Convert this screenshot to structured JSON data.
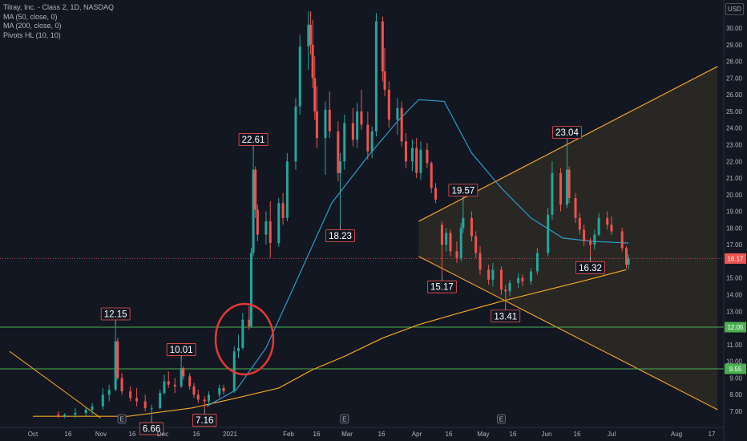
{
  "legend": {
    "title": "Tilray, Inc. - Class 2, 1D, NASDAQ",
    "ma50": "MA (50, close, 0)",
    "ma200": "MA (200, close, 0)",
    "pivots": "Pivots HL (10, 10)"
  },
  "currency": "USD",
  "colors": {
    "background": "#131722",
    "up": "#26a69a",
    "down": "#ef5350",
    "ma50": "#2e9cc9",
    "ma200": "#f5a623",
    "wedge": "#f0a030",
    "hline": "#4caf50",
    "annotation": "#e53935"
  },
  "chart_data": {
    "type": "candlestick",
    "title": "Tilray, Inc. - Class 2, 1D, NASDAQ",
    "ylim": [
      6.5,
      31.0
    ],
    "y_ticks": [
      "30.00",
      "29.00",
      "28.00",
      "27.00",
      "26.00",
      "25.00",
      "24.00",
      "23.00",
      "22.00",
      "21.00",
      "20.00",
      "19.00",
      "18.00",
      "17.00",
      "16.00",
      "15.00",
      "14.00",
      "13.00",
      "12.00",
      "11.00",
      "10.00",
      "9.00",
      "8.00",
      "7.00"
    ],
    "x_ticks": [
      "Oct",
      "16",
      "Nov",
      "16",
      "Dec",
      "16",
      "2021",
      "Feb",
      "16",
      "Mar",
      "16",
      "Apr",
      "16",
      "May",
      "16",
      "Jun",
      "16",
      "Jul",
      "Aug",
      "17"
    ],
    "price_labels": [
      {
        "text": "16.17",
        "value": 16.17,
        "color": "#ef5350"
      },
      {
        "text": "12.05",
        "value": 12.05,
        "color": "#4caf50"
      },
      {
        "text": "9.55",
        "value": 9.55,
        "color": "#4caf50"
      }
    ],
    "horizontal_lines": [
      {
        "value": 12.05,
        "style": "solid"
      },
      {
        "value": 9.55,
        "style": "solid"
      },
      {
        "value": 16.17,
        "style": "dotted"
      }
    ],
    "pivots": [
      {
        "text": "12.15",
        "type": "high",
        "date": "2020-11-09",
        "value": 12.15
      },
      {
        "text": "6.66",
        "type": "low",
        "date": "2020-11-26",
        "value": 6.66
      },
      {
        "text": "10.01",
        "type": "high",
        "date": "2020-12-10",
        "value": 10.01
      },
      {
        "text": "7.16",
        "type": "low",
        "date": "2020-12-21",
        "value": 7.16
      },
      {
        "text": "22.61",
        "type": "high",
        "date": "2021-01-13",
        "value": 22.61
      },
      {
        "text": "18.23",
        "type": "low",
        "date": "2021-02-23",
        "value": 18.23
      },
      {
        "text": "19.57",
        "type": "high",
        "date": "2021-04-22",
        "value": 19.57
      },
      {
        "text": "15.17",
        "type": "low",
        "date": "2021-04-12",
        "value": 15.17
      },
      {
        "text": "13.41",
        "type": "low",
        "date": "2021-05-12",
        "value": 13.41
      },
      {
        "text": "23.04",
        "type": "high",
        "date": "2021-06-10",
        "value": 23.04
      },
      {
        "text": "16.32",
        "type": "low",
        "date": "2021-06-21",
        "value": 16.32
      }
    ],
    "wedge": {
      "upper": [
        {
          "date": "2021-04-01",
          "value": 18.4
        },
        {
          "date": "2021-08-20",
          "value": 27.7
        }
      ],
      "lower": [
        {
          "date": "2021-04-01",
          "value": 16.3
        },
        {
          "date": "2021-08-20",
          "value": 7.1
        }
      ]
    },
    "ma50": [
      {
        "date": "2020-12-22",
        "value": 7.3
      },
      {
        "date": "2021-01-05",
        "value": 8.3
      },
      {
        "date": "2021-01-19",
        "value": 10.8
      },
      {
        "date": "2021-02-03",
        "value": 15.0
      },
      {
        "date": "2021-02-19",
        "value": 19.5
      },
      {
        "date": "2021-03-08",
        "value": 22.3
      },
      {
        "date": "2021-03-22",
        "value": 24.4
      },
      {
        "date": "2021-04-01",
        "value": 25.7
      },
      {
        "date": "2021-04-13",
        "value": 25.6
      },
      {
        "date": "2021-04-26",
        "value": 22.5
      },
      {
        "date": "2021-05-10",
        "value": 20.4
      },
      {
        "date": "2021-05-24",
        "value": 18.6
      },
      {
        "date": "2021-06-08",
        "value": 17.4
      },
      {
        "date": "2021-06-22",
        "value": 17.2
      },
      {
        "date": "2021-07-09",
        "value": 17.1
      }
    ],
    "ma200": [
      {
        "date": "2020-10-01",
        "value": 6.7
      },
      {
        "date": "2020-11-15",
        "value": 6.7
      },
      {
        "date": "2020-12-15",
        "value": 7.2
      },
      {
        "date": "2021-01-05",
        "value": 7.8
      },
      {
        "date": "2021-01-25",
        "value": 8.4
      },
      {
        "date": "2021-02-10",
        "value": 9.5
      },
      {
        "date": "2021-02-25",
        "value": 10.3
      },
      {
        "date": "2021-03-15",
        "value": 11.4
      },
      {
        "date": "2021-04-01",
        "value": 12.2
      },
      {
        "date": "2021-04-20",
        "value": 12.9
      },
      {
        "date": "2021-05-10",
        "value": 13.6
      },
      {
        "date": "2021-06-01",
        "value": 14.3
      },
      {
        "date": "2021-06-20",
        "value": 14.9
      },
      {
        "date": "2021-07-08",
        "value": 15.5
      }
    ],
    "support_decline": [
      {
        "date": "2020-09-20",
        "value": 10.6
      },
      {
        "date": "2020-11-02",
        "value": 6.6
      }
    ],
    "candles": [
      {
        "d": "2020-10-13",
        "o": 6.8,
        "h": 7.0,
        "l": 6.6,
        "c": 6.7
      },
      {
        "d": "2020-10-16",
        "o": 6.7,
        "h": 6.9,
        "l": 6.6,
        "c": 6.8
      },
      {
        "d": "2020-10-21",
        "o": 6.8,
        "h": 7.2,
        "l": 6.6,
        "c": 6.9
      },
      {
        "d": "2020-10-26",
        "o": 6.9,
        "h": 7.3,
        "l": 6.7,
        "c": 7.1
      },
      {
        "d": "2020-10-29",
        "o": 7.1,
        "h": 7.5,
        "l": 6.8,
        "c": 7.3
      },
      {
        "d": "2020-11-03",
        "o": 7.3,
        "h": 8.4,
        "l": 7.1,
        "c": 8.0
      },
      {
        "d": "2020-11-06",
        "o": 8.0,
        "h": 8.6,
        "l": 7.6,
        "c": 8.3
      },
      {
        "d": "2020-11-09",
        "o": 8.3,
        "h": 12.15,
        "l": 8.2,
        "c": 11.2
      },
      {
        "d": "2020-11-10",
        "o": 11.2,
        "h": 11.4,
        "l": 8.9,
        "c": 9.0
      },
      {
        "d": "2020-11-12",
        "o": 9.0,
        "h": 9.3,
        "l": 8.0,
        "c": 8.2
      },
      {
        "d": "2020-11-16",
        "o": 8.2,
        "h": 8.5,
        "l": 7.6,
        "c": 7.8
      },
      {
        "d": "2020-11-19",
        "o": 7.8,
        "h": 8.4,
        "l": 7.3,
        "c": 7.6
      },
      {
        "d": "2020-11-23",
        "o": 7.6,
        "h": 8.0,
        "l": 7.0,
        "c": 7.2
      },
      {
        "d": "2020-11-26",
        "o": 7.2,
        "h": 7.4,
        "l": 6.66,
        "c": 7.2
      },
      {
        "d": "2020-11-30",
        "o": 7.2,
        "h": 8.3,
        "l": 7.1,
        "c": 8.1
      },
      {
        "d": "2020-12-02",
        "o": 8.1,
        "h": 9.2,
        "l": 8.0,
        "c": 8.8
      },
      {
        "d": "2020-12-04",
        "o": 8.8,
        "h": 9.4,
        "l": 8.4,
        "c": 8.6
      },
      {
        "d": "2020-12-07",
        "o": 8.6,
        "h": 9.0,
        "l": 8.1,
        "c": 8.5
      },
      {
        "d": "2020-12-10",
        "o": 8.5,
        "h": 10.01,
        "l": 8.4,
        "c": 9.6
      },
      {
        "d": "2020-12-11",
        "o": 9.6,
        "h": 9.7,
        "l": 8.9,
        "c": 9.1
      },
      {
        "d": "2020-12-14",
        "o": 9.1,
        "h": 9.3,
        "l": 8.3,
        "c": 8.5
      },
      {
        "d": "2020-12-16",
        "o": 8.5,
        "h": 8.7,
        "l": 7.8,
        "c": 8.0
      },
      {
        "d": "2020-12-18",
        "o": 8.0,
        "h": 8.3,
        "l": 7.5,
        "c": 7.7
      },
      {
        "d": "2020-12-21",
        "o": 7.7,
        "h": 7.9,
        "l": 7.16,
        "c": 7.6
      },
      {
        "d": "2020-12-23",
        "o": 7.6,
        "h": 8.2,
        "l": 7.4,
        "c": 8.0
      },
      {
        "d": "2020-12-28",
        "o": 8.0,
        "h": 8.6,
        "l": 7.8,
        "c": 8.4
      },
      {
        "d": "2020-12-30",
        "o": 8.4,
        "h": 8.6,
        "l": 8.0,
        "c": 8.2
      },
      {
        "d": "2021-01-04",
        "o": 8.2,
        "h": 10.9,
        "l": 8.1,
        "c": 10.6
      },
      {
        "d": "2021-01-06",
        "o": 10.6,
        "h": 11.6,
        "l": 10.2,
        "c": 10.8
      },
      {
        "d": "2021-01-08",
        "o": 10.8,
        "h": 12.9,
        "l": 10.7,
        "c": 12.5
      },
      {
        "d": "2021-01-11",
        "o": 12.5,
        "h": 13.3,
        "l": 11.9,
        "c": 12.1
      },
      {
        "d": "2021-01-12",
        "o": 12.1,
        "h": 16.8,
        "l": 12.0,
        "c": 16.5
      },
      {
        "d": "2021-01-13",
        "o": 16.5,
        "h": 22.61,
        "l": 16.3,
        "c": 21.5
      },
      {
        "d": "2021-01-14",
        "o": 21.5,
        "h": 21.7,
        "l": 18.6,
        "c": 19.1
      },
      {
        "d": "2021-01-15",
        "o": 19.1,
        "h": 19.4,
        "l": 17.2,
        "c": 17.6
      },
      {
        "d": "2021-01-19",
        "o": 17.6,
        "h": 19.0,
        "l": 17.0,
        "c": 18.4
      },
      {
        "d": "2021-01-21",
        "o": 18.4,
        "h": 19.6,
        "l": 16.2,
        "c": 17.1
      },
      {
        "d": "2021-01-25",
        "o": 17.1,
        "h": 19.8,
        "l": 16.9,
        "c": 19.5
      },
      {
        "d": "2021-01-27",
        "o": 19.5,
        "h": 20.1,
        "l": 18.2,
        "c": 18.6
      },
      {
        "d": "2021-01-29",
        "o": 18.6,
        "h": 22.5,
        "l": 18.4,
        "c": 22.0
      },
      {
        "d": "2021-02-02",
        "o": 22.0,
        "h": 25.8,
        "l": 21.5,
        "c": 25.3
      },
      {
        "d": "2021-02-04",
        "o": 25.3,
        "h": 29.6,
        "l": 24.8,
        "c": 28.9
      },
      {
        "d": "2021-02-08",
        "o": 28.9,
        "h": 31.0,
        "l": 27.5,
        "c": 30.2
      },
      {
        "d": "2021-02-09",
        "o": 30.2,
        "h": 31.0,
        "l": 28.4,
        "c": 29.0
      },
      {
        "d": "2021-02-10",
        "o": 29.0,
        "h": 30.5,
        "l": 26.4,
        "c": 27.0
      },
      {
        "d": "2021-02-11",
        "o": 27.0,
        "h": 28.3,
        "l": 24.5,
        "c": 25.0
      },
      {
        "d": "2021-02-12",
        "o": 25.0,
        "h": 26.5,
        "l": 22.8,
        "c": 23.4
      },
      {
        "d": "2021-02-16",
        "o": 23.4,
        "h": 25.6,
        "l": 21.2,
        "c": 25.1
      },
      {
        "d": "2021-02-18",
        "o": 25.1,
        "h": 26.2,
        "l": 23.4,
        "c": 23.8
      },
      {
        "d": "2021-02-22",
        "o": 23.8,
        "h": 24.4,
        "l": 20.8,
        "c": 21.3
      },
      {
        "d": "2021-02-23",
        "o": 21.3,
        "h": 22.5,
        "l": 18.23,
        "c": 22.0
      },
      {
        "d": "2021-02-25",
        "o": 22.0,
        "h": 24.8,
        "l": 21.5,
        "c": 24.3
      },
      {
        "d": "2021-03-01",
        "o": 24.3,
        "h": 25.2,
        "l": 22.9,
        "c": 23.3
      },
      {
        "d": "2021-03-03",
        "o": 23.3,
        "h": 25.5,
        "l": 22.8,
        "c": 25.0
      },
      {
        "d": "2021-03-05",
        "o": 25.0,
        "h": 26.3,
        "l": 23.9,
        "c": 24.2
      },
      {
        "d": "2021-03-08",
        "o": 24.2,
        "h": 25.0,
        "l": 22.1,
        "c": 22.6
      },
      {
        "d": "2021-03-10",
        "o": 22.6,
        "h": 24.1,
        "l": 22.2,
        "c": 23.8
      },
      {
        "d": "2021-03-12",
        "o": 23.8,
        "h": 30.9,
        "l": 23.5,
        "c": 30.4
      },
      {
        "d": "2021-03-15",
        "o": 30.4,
        "h": 30.7,
        "l": 26.8,
        "c": 27.4
      },
      {
        "d": "2021-03-16",
        "o": 27.4,
        "h": 28.8,
        "l": 25.9,
        "c": 26.3
      },
      {
        "d": "2021-03-18",
        "o": 26.3,
        "h": 26.8,
        "l": 24.0,
        "c": 24.5
      },
      {
        "d": "2021-03-22",
        "o": 24.5,
        "h": 25.8,
        "l": 23.6,
        "c": 25.2
      },
      {
        "d": "2021-03-24",
        "o": 25.2,
        "h": 25.6,
        "l": 22.9,
        "c": 23.2
      },
      {
        "d": "2021-03-26",
        "o": 23.2,
        "h": 23.7,
        "l": 21.6,
        "c": 22.0
      },
      {
        "d": "2021-03-29",
        "o": 22.0,
        "h": 23.3,
        "l": 21.4,
        "c": 22.8
      },
      {
        "d": "2021-03-31",
        "o": 22.8,
        "h": 23.4,
        "l": 21.0,
        "c": 21.3
      },
      {
        "d": "2021-04-02",
        "o": 21.3,
        "h": 23.2,
        "l": 20.9,
        "c": 22.7
      },
      {
        "d": "2021-04-05",
        "o": 22.7,
        "h": 23.1,
        "l": 21.6,
        "c": 21.9
      },
      {
        "d": "2021-04-07",
        "o": 21.9,
        "h": 22.0,
        "l": 20.1,
        "c": 20.4
      },
      {
        "d": "2021-04-09",
        "o": 20.4,
        "h": 20.7,
        "l": 19.5,
        "c": 19.7
      },
      {
        "d": "2021-04-12",
        "o": 18.2,
        "h": 18.4,
        "l": 15.17,
        "c": 17.0
      },
      {
        "d": "2021-04-14",
        "o": 17.0,
        "h": 18.0,
        "l": 16.6,
        "c": 17.7
      },
      {
        "d": "2021-04-16",
        "o": 17.7,
        "h": 17.9,
        "l": 16.3,
        "c": 16.6
      },
      {
        "d": "2021-04-19",
        "o": 16.6,
        "h": 17.2,
        "l": 15.9,
        "c": 16.2
      },
      {
        "d": "2021-04-21",
        "o": 16.2,
        "h": 18.3,
        "l": 16.0,
        "c": 18.0
      },
      {
        "d": "2021-04-22",
        "o": 18.0,
        "h": 19.57,
        "l": 17.7,
        "c": 18.6
      },
      {
        "d": "2021-04-26",
        "o": 18.6,
        "h": 19.0,
        "l": 17.2,
        "c": 17.5
      },
      {
        "d": "2021-04-28",
        "o": 17.5,
        "h": 17.8,
        "l": 16.2,
        "c": 16.5
      },
      {
        "d": "2021-04-30",
        "o": 16.5,
        "h": 16.9,
        "l": 15.2,
        "c": 15.5
      },
      {
        "d": "2021-05-04",
        "o": 15.5,
        "h": 15.8,
        "l": 14.6,
        "c": 14.9
      },
      {
        "d": "2021-05-06",
        "o": 14.9,
        "h": 15.9,
        "l": 14.5,
        "c": 15.5
      },
      {
        "d": "2021-05-10",
        "o": 15.5,
        "h": 15.7,
        "l": 14.0,
        "c": 14.3
      },
      {
        "d": "2021-05-12",
        "o": 14.3,
        "h": 14.6,
        "l": 13.41,
        "c": 14.2
      },
      {
        "d": "2021-05-14",
        "o": 14.2,
        "h": 14.9,
        "l": 13.9,
        "c": 14.7
      },
      {
        "d": "2021-05-18",
        "o": 14.7,
        "h": 15.3,
        "l": 14.4,
        "c": 15.0
      },
      {
        "d": "2021-05-20",
        "o": 15.0,
        "h": 15.2,
        "l": 14.5,
        "c": 14.8
      },
      {
        "d": "2021-05-24",
        "o": 14.8,
        "h": 15.6,
        "l": 14.6,
        "c": 15.4
      },
      {
        "d": "2021-05-27",
        "o": 15.4,
        "h": 16.8,
        "l": 15.2,
        "c": 16.5
      },
      {
        "d": "2021-06-01",
        "o": 16.5,
        "h": 19.2,
        "l": 16.3,
        "c": 18.8
      },
      {
        "d": "2021-06-03",
        "o": 18.8,
        "h": 22.0,
        "l": 18.5,
        "c": 21.3
      },
      {
        "d": "2021-06-07",
        "o": 21.3,
        "h": 21.6,
        "l": 19.0,
        "c": 19.4
      },
      {
        "d": "2021-06-10",
        "o": 19.4,
        "h": 23.04,
        "l": 19.2,
        "c": 21.5
      },
      {
        "d": "2021-06-11",
        "o": 21.5,
        "h": 21.7,
        "l": 19.5,
        "c": 19.8
      },
      {
        "d": "2021-06-14",
        "o": 19.8,
        "h": 20.1,
        "l": 18.3,
        "c": 18.6
      },
      {
        "d": "2021-06-16",
        "o": 18.6,
        "h": 18.9,
        "l": 17.6,
        "c": 17.9
      },
      {
        "d": "2021-06-18",
        "o": 17.9,
        "h": 18.2,
        "l": 16.9,
        "c": 17.2
      },
      {
        "d": "2021-06-21",
        "o": 17.2,
        "h": 17.4,
        "l": 16.32,
        "c": 17.0
      },
      {
        "d": "2021-06-23",
        "o": 17.0,
        "h": 17.9,
        "l": 16.7,
        "c": 17.6
      },
      {
        "d": "2021-06-25",
        "o": 17.6,
        "h": 18.9,
        "l": 17.5,
        "c": 18.6
      },
      {
        "d": "2021-06-29",
        "o": 18.6,
        "h": 19.0,
        "l": 17.9,
        "c": 18.2
      },
      {
        "d": "2021-07-01",
        "o": 18.2,
        "h": 18.7,
        "l": 17.6,
        "c": 17.8
      },
      {
        "d": "2021-07-06",
        "o": 17.8,
        "h": 18.0,
        "l": 16.6,
        "c": 16.8
      },
      {
        "d": "2021-07-08",
        "o": 16.8,
        "h": 16.9,
        "l": 15.6,
        "c": 15.8
      },
      {
        "d": "2021-07-09",
        "o": 15.8,
        "h": 16.4,
        "l": 15.5,
        "c": 16.17
      }
    ]
  }
}
